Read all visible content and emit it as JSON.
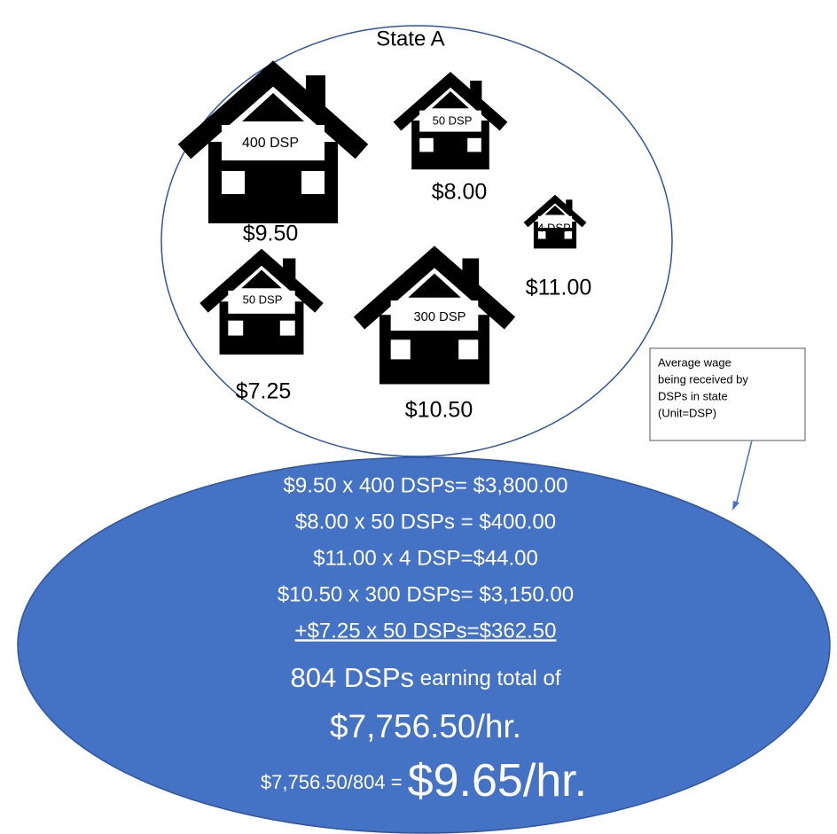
{
  "title": "State A",
  "houses": [
    {
      "label": "400 DSP",
      "wage": "$9.50"
    },
    {
      "label": "50 DSP",
      "wage": "$8.00"
    },
    {
      "label": "4 DSP",
      "wage": "$11.00"
    },
    {
      "label": "50 DSP",
      "wage": "$7.25"
    },
    {
      "label": "300 DSP",
      "wage": "$10.50"
    }
  ],
  "note": [
    "Average wage",
    "being received by",
    "DSPs in state",
    "(Unit=DSP)"
  ],
  "calculations": [
    "$9.50 x 400 DSPs= $3,800.00",
    "$8.00 x 50 DSPs = $400.00",
    "$11.00 x 4 DSP=$44.00",
    "$10.50 x 300 DSPs= $3,150.00",
    "+$7.25 x 50 DSPs=$362.50"
  ],
  "summary": {
    "count": "804 DSPs",
    "text": " earning total of",
    "total": "$7,756.50/hr.",
    "division": "$7,756.50/804",
    "equals": " = ",
    "result": "$9.65/hr."
  }
}
